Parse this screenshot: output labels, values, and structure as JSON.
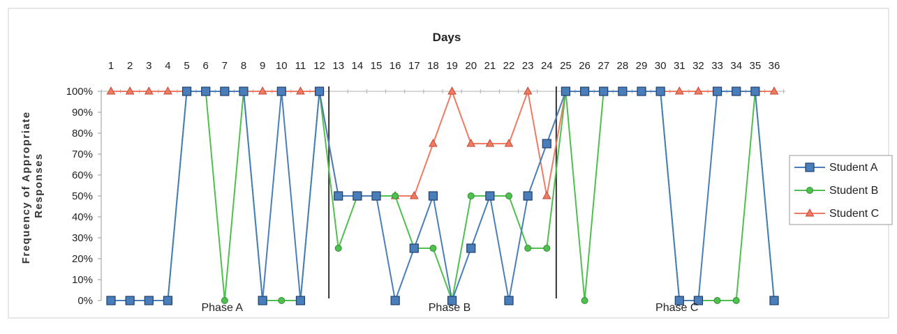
{
  "chart_data": {
    "type": "line",
    "title": "Days",
    "xlabel": "",
    "ylabel": "Frequency of Appropriate Responses",
    "x": [
      1,
      2,
      3,
      4,
      5,
      6,
      7,
      8,
      9,
      10,
      11,
      12,
      13,
      14,
      15,
      16,
      17,
      18,
      19,
      20,
      21,
      22,
      23,
      24,
      25,
      26,
      27,
      28,
      29,
      30,
      31,
      32,
      33,
      34,
      35,
      36
    ],
    "y_ticks": [
      "0%",
      "10%",
      "20%",
      "30%",
      "40%",
      "50%",
      "60%",
      "70%",
      "80%",
      "90%",
      "100%"
    ],
    "ylim": [
      0,
      100
    ],
    "grid": false,
    "legend_position": "right",
    "phase_change_after": [
      12,
      24
    ],
    "phases": [
      {
        "label": "Phase A",
        "days": [
          1,
          12
        ]
      },
      {
        "label": "Phase B",
        "days": [
          13,
          24
        ]
      },
      {
        "label": "Phase C",
        "days": [
          25,
          36
        ]
      }
    ],
    "series": [
      {
        "name": "Student A",
        "color": "#4a7ebb",
        "marker": "square",
        "values": [
          0,
          0,
          0,
          0,
          100,
          100,
          100,
          100,
          0,
          100,
          0,
          100,
          50,
          50,
          50,
          0,
          25,
          50,
          0,
          25,
          50,
          0,
          50,
          75,
          100,
          100,
          100,
          100,
          100,
          100,
          0,
          0,
          100,
          100,
          100,
          0
        ]
      },
      {
        "name": "Student B",
        "color": "#4fbf4f",
        "marker": "circle",
        "values": [
          0,
          0,
          0,
          0,
          100,
          100,
          0,
          100,
          0,
          0,
          0,
          100,
          25,
          50,
          50,
          50,
          25,
          25,
          0,
          50,
          50,
          50,
          25,
          25,
          100,
          0,
          100,
          100,
          100,
          100,
          0,
          0,
          0,
          0,
          100,
          0
        ]
      },
      {
        "name": "Student C",
        "color": "#f07a62",
        "marker": "triangle",
        "values": [
          100,
          100,
          100,
          100,
          100,
          100,
          100,
          100,
          100,
          100,
          100,
          100,
          50,
          50,
          50,
          50,
          50,
          75,
          100,
          75,
          75,
          75,
          100,
          50,
          100,
          100,
          100,
          100,
          100,
          100,
          100,
          100,
          100,
          100,
          100,
          100
        ]
      }
    ]
  }
}
